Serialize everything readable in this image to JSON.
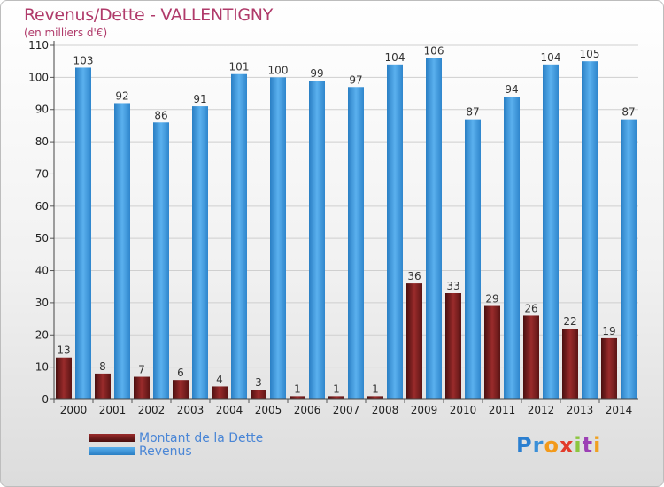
{
  "title": "Revenus/Dette - VALLENTIGNY",
  "subtitle": "(en milliers d'€)",
  "legend": {
    "debt_label": "Montant de la Dette",
    "revenue_label": "Revenus"
  },
  "logo": {
    "text": "Proxiti"
  },
  "colors": {
    "title": "#b03a6a",
    "debt_bar": "#8b2323",
    "revenue_bar": "#3b97db",
    "axis_text": "#222222",
    "grid": "#cfcfcf",
    "legend_text": "#4a86d6"
  },
  "chart_data": {
    "type": "bar",
    "categories": [
      "2000",
      "2001",
      "2002",
      "2003",
      "2004",
      "2005",
      "2006",
      "2007",
      "2008",
      "2009",
      "2010",
      "2011",
      "2012",
      "2013",
      "2014"
    ],
    "series": [
      {
        "name": "Montant de la Dette",
        "values": [
          13,
          8,
          7,
          6,
          4,
          3,
          1,
          1,
          1,
          36,
          33,
          29,
          26,
          22,
          19
        ]
      },
      {
        "name": "Revenus",
        "values": [
          103,
          92,
          86,
          91,
          101,
          100,
          99,
          97,
          104,
          106,
          87,
          94,
          104,
          105,
          87
        ]
      }
    ],
    "yticks": [
      0,
      10,
      20,
      30,
      40,
      50,
      60,
      70,
      80,
      90,
      100,
      110
    ],
    "ylim": [
      0,
      110
    ],
    "grid": true,
    "legend_position": "bottom-left"
  }
}
